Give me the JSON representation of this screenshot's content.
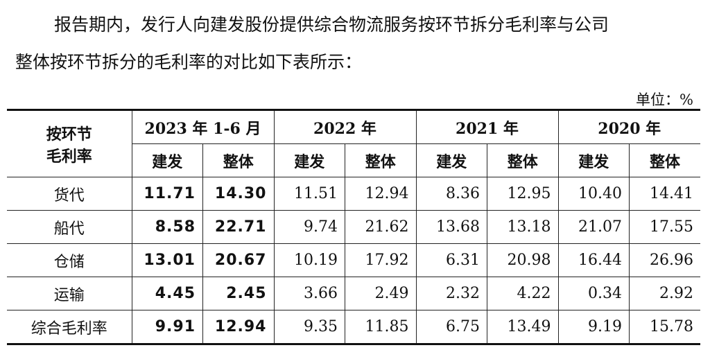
{
  "paragraph": {
    "lines": [
      "报告期内，发行人向建发股份提供综合物流服务按环节拆分毛利率与公司",
      "整体按环节拆分的毛利率的对比如下表所示："
    ]
  },
  "unit": "单位：%",
  "table": {
    "corner": [
      "按环节",
      "毛利率"
    ],
    "periods": [
      "2023 年 1-6 月",
      "2022 年",
      "2021 年",
      "2020 年"
    ],
    "subheaders": [
      "建发",
      "整体",
      "建发",
      "整体",
      "建发",
      "整体",
      "建发",
      "整体"
    ],
    "rows": [
      [
        "货代",
        "11.71",
        "14.30",
        "11.51",
        "12.94",
        "8.36",
        "12.95",
        "10.40",
        "14.41"
      ],
      [
        "船代",
        "8.58",
        "22.71",
        "9.74",
        "21.62",
        "13.68",
        "13.18",
        "21.07",
        "17.55"
      ],
      [
        "仓储",
        "13.01",
        "20.67",
        "10.19",
        "17.92",
        "6.31",
        "20.98",
        "16.44",
        "26.96"
      ],
      [
        "运输",
        "4.45",
        "2.45",
        "3.66",
        "2.49",
        "2.32",
        "4.22",
        "0.34",
        "2.92"
      ],
      [
        "综合毛利率",
        "9.91",
        "12.94",
        "9.35",
        "11.85",
        "6.75",
        "13.49",
        "9.19",
        "15.78"
      ]
    ]
  }
}
